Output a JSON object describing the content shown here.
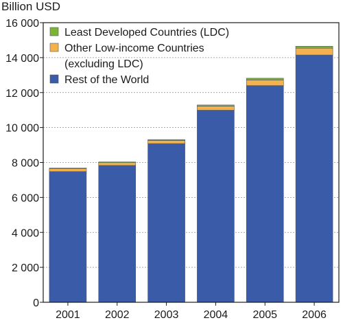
{
  "chart_data": {
    "type": "bar",
    "stacked": true,
    "ylabel": "Billion USD",
    "xlabel": "",
    "ylim": [
      0,
      16000
    ],
    "yticks": [
      0,
      2000,
      4000,
      6000,
      8000,
      10000,
      12000,
      14000,
      16000
    ],
    "ytick_labels": [
      "0",
      "2 000",
      "4 000",
      "6 000",
      "8 000",
      "10 000",
      "12 000",
      "14 000",
      "16 000"
    ],
    "categories": [
      "2001",
      "2002",
      "2003",
      "2004",
      "2005",
      "2006"
    ],
    "grid": "horizontal dashed",
    "legend_position": "top-left",
    "series": [
      {
        "name": "Rest of the World",
        "color": "#3a5ba8",
        "values": [
          7480,
          7830,
          9080,
          10990,
          12400,
          14150
        ]
      },
      {
        "name": "Other Low-income Countries",
        "color": "#f3b24e",
        "values": [
          160,
          160,
          180,
          230,
          320,
          390
        ]
      },
      {
        "name": "Least Developed Countries (LDC)",
        "color": "#7ab537",
        "values": [
          40,
          40,
          50,
          70,
          100,
          110
        ]
      }
    ],
    "legend": [
      {
        "lines": [
          "Least Developed Countries (LDC)"
        ],
        "color": "#7ab537"
      },
      {
        "lines": [
          "Other Low-income Countries",
          "(excluding LDC)"
        ],
        "color": "#f3b24e"
      },
      {
        "lines": [
          "Rest of the World"
        ],
        "color": "#3a5ba8"
      }
    ]
  }
}
